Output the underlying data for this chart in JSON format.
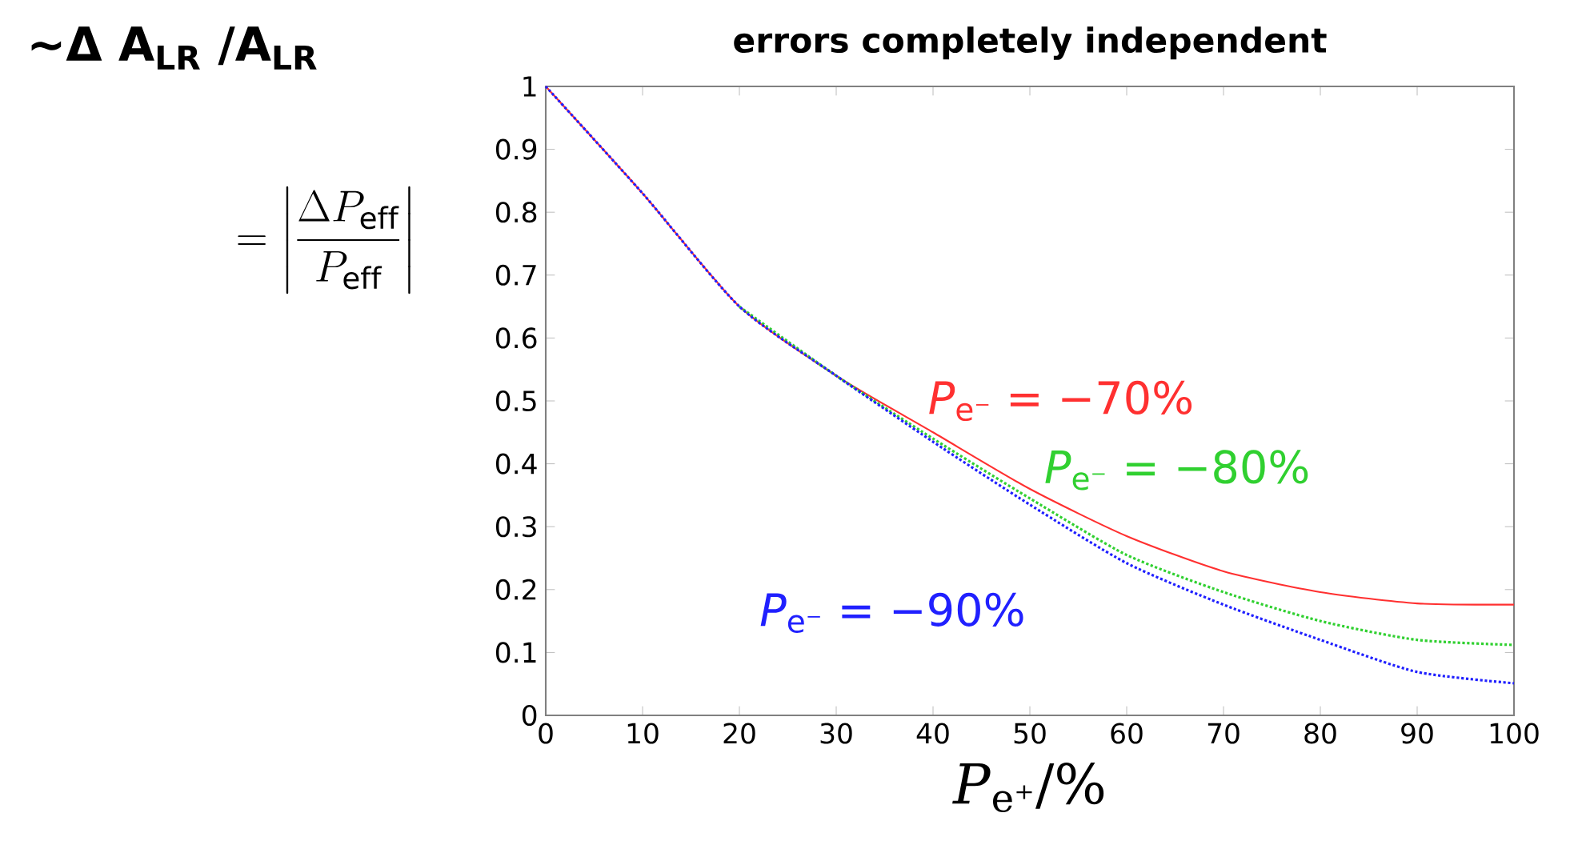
{
  "chart_data": {
    "type": "line",
    "title": "errors completely independent",
    "ylabel": "~Δ A$_{LR}$ /A$_{LR}$",
    "xlabel": "*P*$_{e⁺}$/%",
    "annotations": [
      "= \\left|\\frac{\\Delta P_{\\mathrm{eff}}}{P_{\\mathrm{eff}}}\\right|"
    ],
    "x": [
      0,
      10,
      20,
      30,
      40,
      50,
      60,
      70,
      80,
      90,
      100
    ],
    "series": [
      {
        "name": "*P*$_{e⁻}$ = −70%",
        "color": "#ff3030",
        "line_style": "solid",
        "values": [
          1,
          0.83,
          0.65,
          0.54,
          0.45,
          0.36,
          0.285,
          0.229,
          0.196,
          0.178,
          0.176
        ]
      },
      {
        "name": "*P*$_{e⁻}$ = −80%",
        "color": "#30d030",
        "line_style": "dotted",
        "values": [
          null,
          null,
          0.65,
          0.54,
          0.44,
          0.345,
          0.255,
          0.196,
          0.15,
          0.12,
          0.112
        ]
      },
      {
        "name": "*P*$_{e⁻}$ = −90%",
        "color": "#2020ff",
        "line_style": "dotted",
        "values": [
          1,
          0.83,
          0.65,
          0.54,
          0.435,
          0.335,
          0.242,
          0.176,
          0.12,
          0.069,
          0.051
        ]
      }
    ],
    "xlim": [
      0,
      100
    ],
    "ylim": [
      0,
      1
    ],
    "xticks": [
      0,
      10,
      20,
      30,
      40,
      50,
      60,
      70,
      80,
      90,
      100
    ],
    "yticks": [
      0,
      0.1,
      0.2,
      0.3,
      0.4,
      0.5,
      0.6,
      0.7,
      0.8,
      0.9,
      1
    ],
    "grid": false
  }
}
